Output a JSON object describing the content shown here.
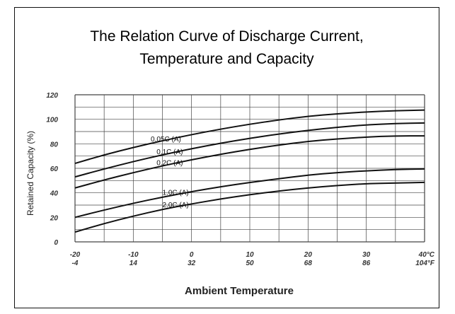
{
  "title_line1": "The Relation Curve of Discharge Current,",
  "title_line2": "Temperature and Capacity",
  "chart_data": {
    "type": "line",
    "xlabel": "Ambient Temperature",
    "ylabel": "Retained Capacity (%)",
    "xlim": [
      -20,
      40
    ],
    "ylim": [
      0,
      120
    ],
    "grid": true,
    "yticks": [
      "0",
      "20",
      "40",
      "60",
      "80",
      "100",
      "120"
    ],
    "xticks_c": [
      "-20",
      "-10",
      "0",
      "10",
      "20",
      "30",
      "40°C"
    ],
    "xticks_f": [
      "-4",
      "14",
      "32",
      "50",
      "68",
      "86",
      "104°F"
    ],
    "series": [
      {
        "name": "0.05C (A)",
        "x": [
          -20,
          -15,
          -10,
          -5,
          0,
          5,
          10,
          15,
          20,
          25,
          30,
          35,
          40
        ],
        "values": [
          64,
          71,
          77,
          82.5,
          87.5,
          92,
          96,
          99.5,
          102.5,
          104.5,
          106,
          107,
          107.5
        ]
      },
      {
        "name": "0.1C (A)",
        "x": [
          -20,
          -15,
          -10,
          -5,
          0,
          5,
          10,
          15,
          20,
          25,
          30,
          35,
          40
        ],
        "values": [
          53,
          59.5,
          65.5,
          71,
          76,
          80.5,
          84.5,
          88,
          91,
          93.5,
          95.5,
          96.5,
          97
        ]
      },
      {
        "name": "0.2C (A)",
        "x": [
          -20,
          -15,
          -10,
          -5,
          0,
          5,
          10,
          15,
          20,
          25,
          30,
          35,
          40
        ],
        "values": [
          44,
          50.5,
          56.5,
          62,
          67,
          71.5,
          75.5,
          79,
          82,
          84,
          85.5,
          86.5,
          86.5
        ]
      },
      {
        "name": "1.0C (A)",
        "x": [
          -20,
          -15,
          -10,
          -5,
          0,
          5,
          10,
          15,
          20,
          25,
          30,
          35,
          40
        ],
        "values": [
          20,
          26,
          31.5,
          36.5,
          41,
          45,
          48.5,
          51.5,
          54.5,
          56.5,
          58,
          59,
          59.5
        ]
      },
      {
        "name": "2.0C (A)",
        "x": [
          -20,
          -15,
          -10,
          -5,
          0,
          5,
          10,
          15,
          20,
          25,
          30,
          35,
          40
        ],
        "values": [
          8,
          15,
          21,
          26.5,
          31,
          35,
          38.5,
          41.5,
          44,
          46,
          47.5,
          48,
          48.5
        ]
      }
    ]
  }
}
